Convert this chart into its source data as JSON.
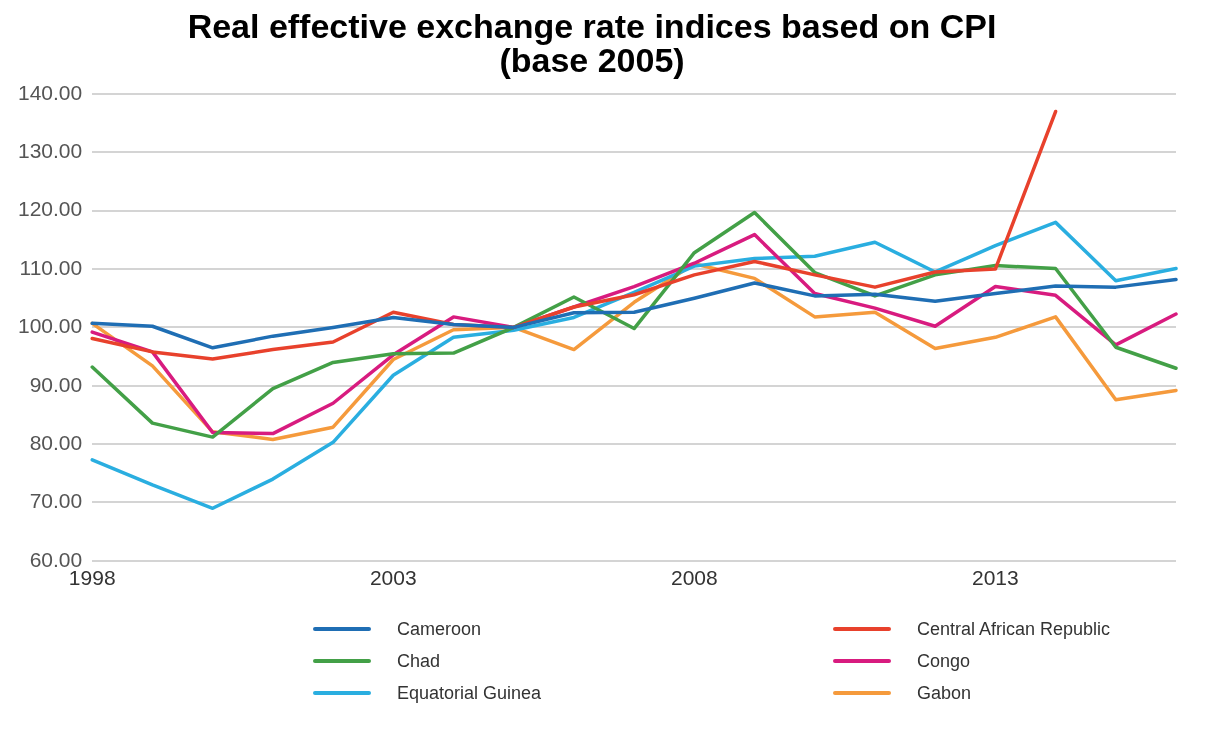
{
  "chart_data": {
    "type": "line",
    "title": "Real effective exchange rate indices based on CPI",
    "subtitle": "(base 2005)",
    "x": [
      1998,
      1999,
      2000,
      2001,
      2002,
      2003,
      2004,
      2005,
      2006,
      2007,
      2008,
      2009,
      2010,
      2011,
      2012,
      2013,
      2014,
      2015,
      2016
    ],
    "series": [
      {
        "name": "Cameroon",
        "color": "#1f6eb4",
        "values": [
          100.7,
          100.2,
          96.5,
          98.5,
          100,
          101.7,
          100.5,
          100,
          102.5,
          102.6,
          105,
          107.6,
          105.4,
          105.7,
          104.5,
          105.8,
          107.1,
          106.9,
          108.2
        ]
      },
      {
        "name": "Central African Republic",
        "color": "#e8412c",
        "values": [
          98.1,
          95.8,
          94.6,
          96.2,
          97.5,
          102.6,
          100.5,
          100,
          103.5,
          105.6,
          109,
          111.3,
          109,
          106.9,
          109.5,
          110,
          137,
          null,
          null
        ]
      },
      {
        "name": "Chad",
        "color": "#43a047",
        "values": [
          93.2,
          83.6,
          81.2,
          89.5,
          94,
          95.5,
          95.6,
          100,
          105.2,
          99.8,
          112.8,
          119.7,
          109.4,
          105.4,
          109,
          110.6,
          110.1,
          96.6,
          93
        ]
      },
      {
        "name": "Congo",
        "color": "#d81b7f",
        "values": [
          99.2,
          95.8,
          82,
          81.8,
          87,
          95.3,
          101.8,
          100,
          103.5,
          107,
          111,
          115.9,
          105.8,
          103.3,
          100.2,
          107,
          105.5,
          97,
          102.3
        ]
      },
      {
        "name": "Equatorial Guinea",
        "color": "#2aaee0",
        "values": [
          77.3,
          73,
          69,
          74,
          80.3,
          91.8,
          98.3,
          99.5,
          101.7,
          106,
          110.5,
          111.8,
          112.2,
          114.6,
          109.5,
          114,
          118,
          108,
          110.1
        ]
      },
      {
        "name": "Gabon",
        "color": "#f59a3c",
        "values": [
          100.7,
          93.4,
          82.1,
          80.8,
          82.9,
          94.5,
          99.6,
          100,
          96.2,
          104.3,
          110.9,
          108.4,
          101.8,
          102.6,
          96.4,
          98.3,
          101.8,
          87.6,
          89.2
        ]
      }
    ],
    "xlim": [
      1998,
      2016
    ],
    "xticks": [
      1998,
      2003,
      2008,
      2013
    ],
    "ylim": [
      60,
      140
    ],
    "yticks": [
      {
        "value": 60,
        "label": "60.00"
      },
      {
        "value": 70,
        "label": "70.00"
      },
      {
        "value": 80,
        "label": "80.00"
      },
      {
        "value": 90,
        "label": "90.00"
      },
      {
        "value": 100,
        "label": "100.00"
      },
      {
        "value": 110,
        "label": "110.00"
      },
      {
        "value": 120,
        "label": "120.00"
      },
      {
        "value": 130,
        "label": "130.00"
      },
      {
        "value": 140,
        "label": "140.00"
      }
    ],
    "grid": "y",
    "legend": "bottom",
    "marker": "none",
    "line_style": "solid"
  }
}
